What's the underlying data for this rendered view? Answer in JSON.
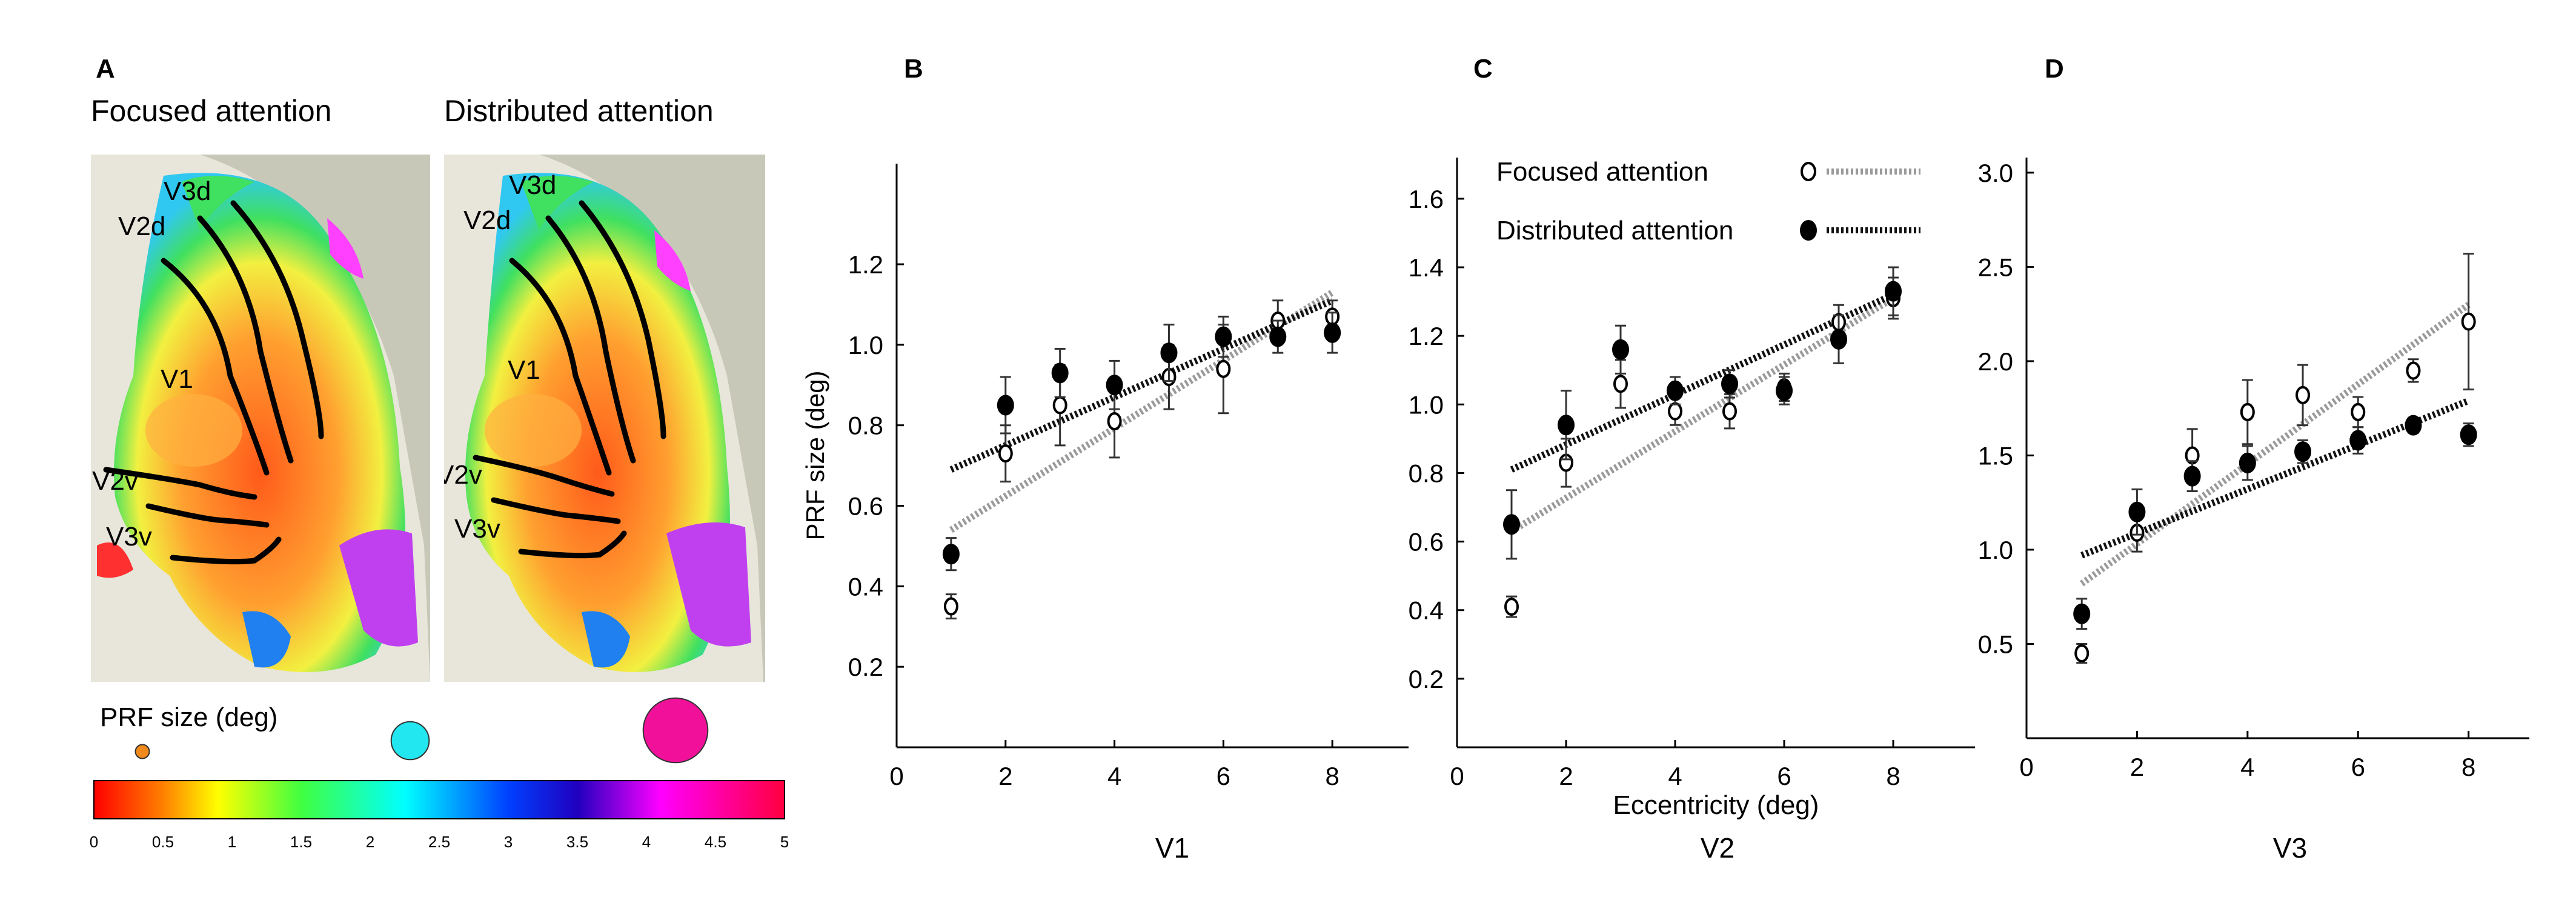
{
  "panel_a": {
    "label": "A",
    "focused_title": "Focused attention",
    "distributed_title": "Distributed attention",
    "region_labels": [
      "V3d",
      "V2d",
      "V1",
      "V2v",
      "V3v"
    ],
    "prf_legend_label": "PRF size (deg)",
    "prf_circles": [
      {
        "color": "#f08a1c",
        "size_deg": 0.5
      },
      {
        "color": "#22e6f0",
        "size_deg": 2.3
      },
      {
        "color": "#f0109a",
        "size_deg": 4.3
      }
    ],
    "colorbar_ticks": [
      "0",
      "0.5",
      "1",
      "1.5",
      "2",
      "2.5",
      "3",
      "3.5",
      "4",
      "4.5",
      "5"
    ],
    "colorbar_range": [
      0,
      5
    ]
  },
  "legend": {
    "focused": "Focused attention",
    "distributed": "Distributed attention"
  },
  "colors": {
    "focused_line": "#9a9a9a",
    "distributed_line": "#111111"
  },
  "chart_data": [
    {
      "panel": "B",
      "type": "scatter",
      "title": "V1",
      "xlabel": "",
      "ylabel": "PRF size (deg)",
      "xlim": [
        0,
        9.4
      ],
      "ylim": [
        0,
        1.45
      ],
      "xticks": [
        0,
        2,
        4,
        6,
        8
      ],
      "yticks": [
        0.2,
        0.4,
        0.6,
        0.8,
        1.0,
        1.2
      ],
      "ytick_labels": [
        "0.2",
        "0.4",
        "0.6",
        "0.8",
        "1.0",
        "1.2"
      ],
      "series": [
        {
          "name": "Focused attention",
          "marker": "open",
          "x": [
            1,
            2,
            3,
            4,
            5,
            6,
            7,
            8
          ],
          "y": [
            0.35,
            0.73,
            0.85,
            0.81,
            0.92,
            0.94,
            1.06,
            1.07
          ],
          "err": [
            0.03,
            0.07,
            0.1,
            0.09,
            0.08,
            0.11,
            0.05,
            0.04
          ],
          "fit": [
            [
              1,
              0.54
            ],
            [
              8,
              1.13
            ]
          ]
        },
        {
          "name": "Distributed attention",
          "marker": "filled",
          "x": [
            1,
            2,
            3,
            4,
            5,
            6,
            7,
            8
          ],
          "y": [
            0.48,
            0.85,
            0.93,
            0.9,
            0.98,
            1.02,
            1.02,
            1.03
          ],
          "err": [
            0.04,
            0.07,
            0.06,
            0.06,
            0.07,
            0.05,
            0.04,
            0.05
          ],
          "fit": [
            [
              1,
              0.69
            ],
            [
              8,
              1.11
            ]
          ]
        }
      ]
    },
    {
      "panel": "C",
      "type": "scatter",
      "title": "V2",
      "xlabel": "Eccentricity (deg)",
      "ylabel": "",
      "xlim": [
        0,
        9.5
      ],
      "ylim": [
        0,
        1.72
      ],
      "xticks": [
        0,
        2,
        4,
        6,
        8
      ],
      "yticks": [
        0.2,
        0.4,
        0.6,
        0.8,
        1.0,
        1.2,
        1.4,
        1.6
      ],
      "ytick_labels": [
        "0.2",
        "0.4",
        "0.6",
        "0.8",
        "1.0",
        "1.2",
        "1.4",
        "1.6"
      ],
      "series": [
        {
          "name": "Focused attention",
          "marker": "open",
          "x": [
            1,
            2,
            3,
            4,
            5,
            6,
            7,
            8
          ],
          "y": [
            0.41,
            0.83,
            1.06,
            0.98,
            0.98,
            1.05,
            1.24,
            1.31
          ],
          "err": [
            0.03,
            0.07,
            0.07,
            0.04,
            0.05,
            0.04,
            0.05,
            0.06
          ],
          "fit": [
            [
              1,
              0.63
            ],
            [
              8,
              1.31
            ]
          ]
        },
        {
          "name": "Distributed attention",
          "marker": "filled",
          "x": [
            1,
            2,
            3,
            4,
            5,
            6,
            7,
            8
          ],
          "y": [
            0.65,
            0.94,
            1.16,
            1.04,
            1.06,
            1.04,
            1.19,
            1.33
          ],
          "err": [
            0.1,
            0.1,
            0.07,
            0.04,
            0.04,
            0.04,
            0.07,
            0.07
          ],
          "fit": [
            [
              1,
              0.81
            ],
            [
              8,
              1.32
            ]
          ]
        }
      ]
    },
    {
      "panel": "D",
      "type": "scatter",
      "title": "V3",
      "xlabel": "",
      "ylabel": "",
      "xlim": [
        0,
        9.1
      ],
      "ylim": [
        0,
        3.08
      ],
      "xticks": [
        0,
        2,
        4,
        6,
        8
      ],
      "yticks": [
        0.5,
        1.0,
        1.5,
        2.0,
        2.5,
        3.0
      ],
      "ytick_labels": [
        "0.5",
        "1.0",
        "1.5",
        "2.0",
        "2.5",
        "3.0"
      ],
      "series": [
        {
          "name": "Focused attention",
          "marker": "open",
          "x": [
            1,
            2,
            3,
            4,
            5,
            6,
            7,
            8
          ],
          "y": [
            0.45,
            1.09,
            1.5,
            1.73,
            1.82,
            1.73,
            1.95,
            2.21
          ],
          "err": [
            0.05,
            0.1,
            0.14,
            0.17,
            0.16,
            0.08,
            0.06,
            0.36
          ],
          "fit": [
            [
              1,
              0.82
            ],
            [
              8,
              2.3
            ]
          ]
        },
        {
          "name": "Distributed attention",
          "marker": "filled",
          "x": [
            1,
            2,
            3,
            4,
            5,
            6,
            7,
            8
          ],
          "y": [
            0.66,
            1.2,
            1.39,
            1.46,
            1.52,
            1.58,
            1.66,
            1.61
          ],
          "err": [
            0.08,
            0.12,
            0.08,
            0.09,
            0.06,
            0.07,
            0.04,
            0.06
          ],
          "fit": [
            [
              1,
              0.97
            ],
            [
              8,
              1.79
            ]
          ]
        }
      ]
    }
  ]
}
